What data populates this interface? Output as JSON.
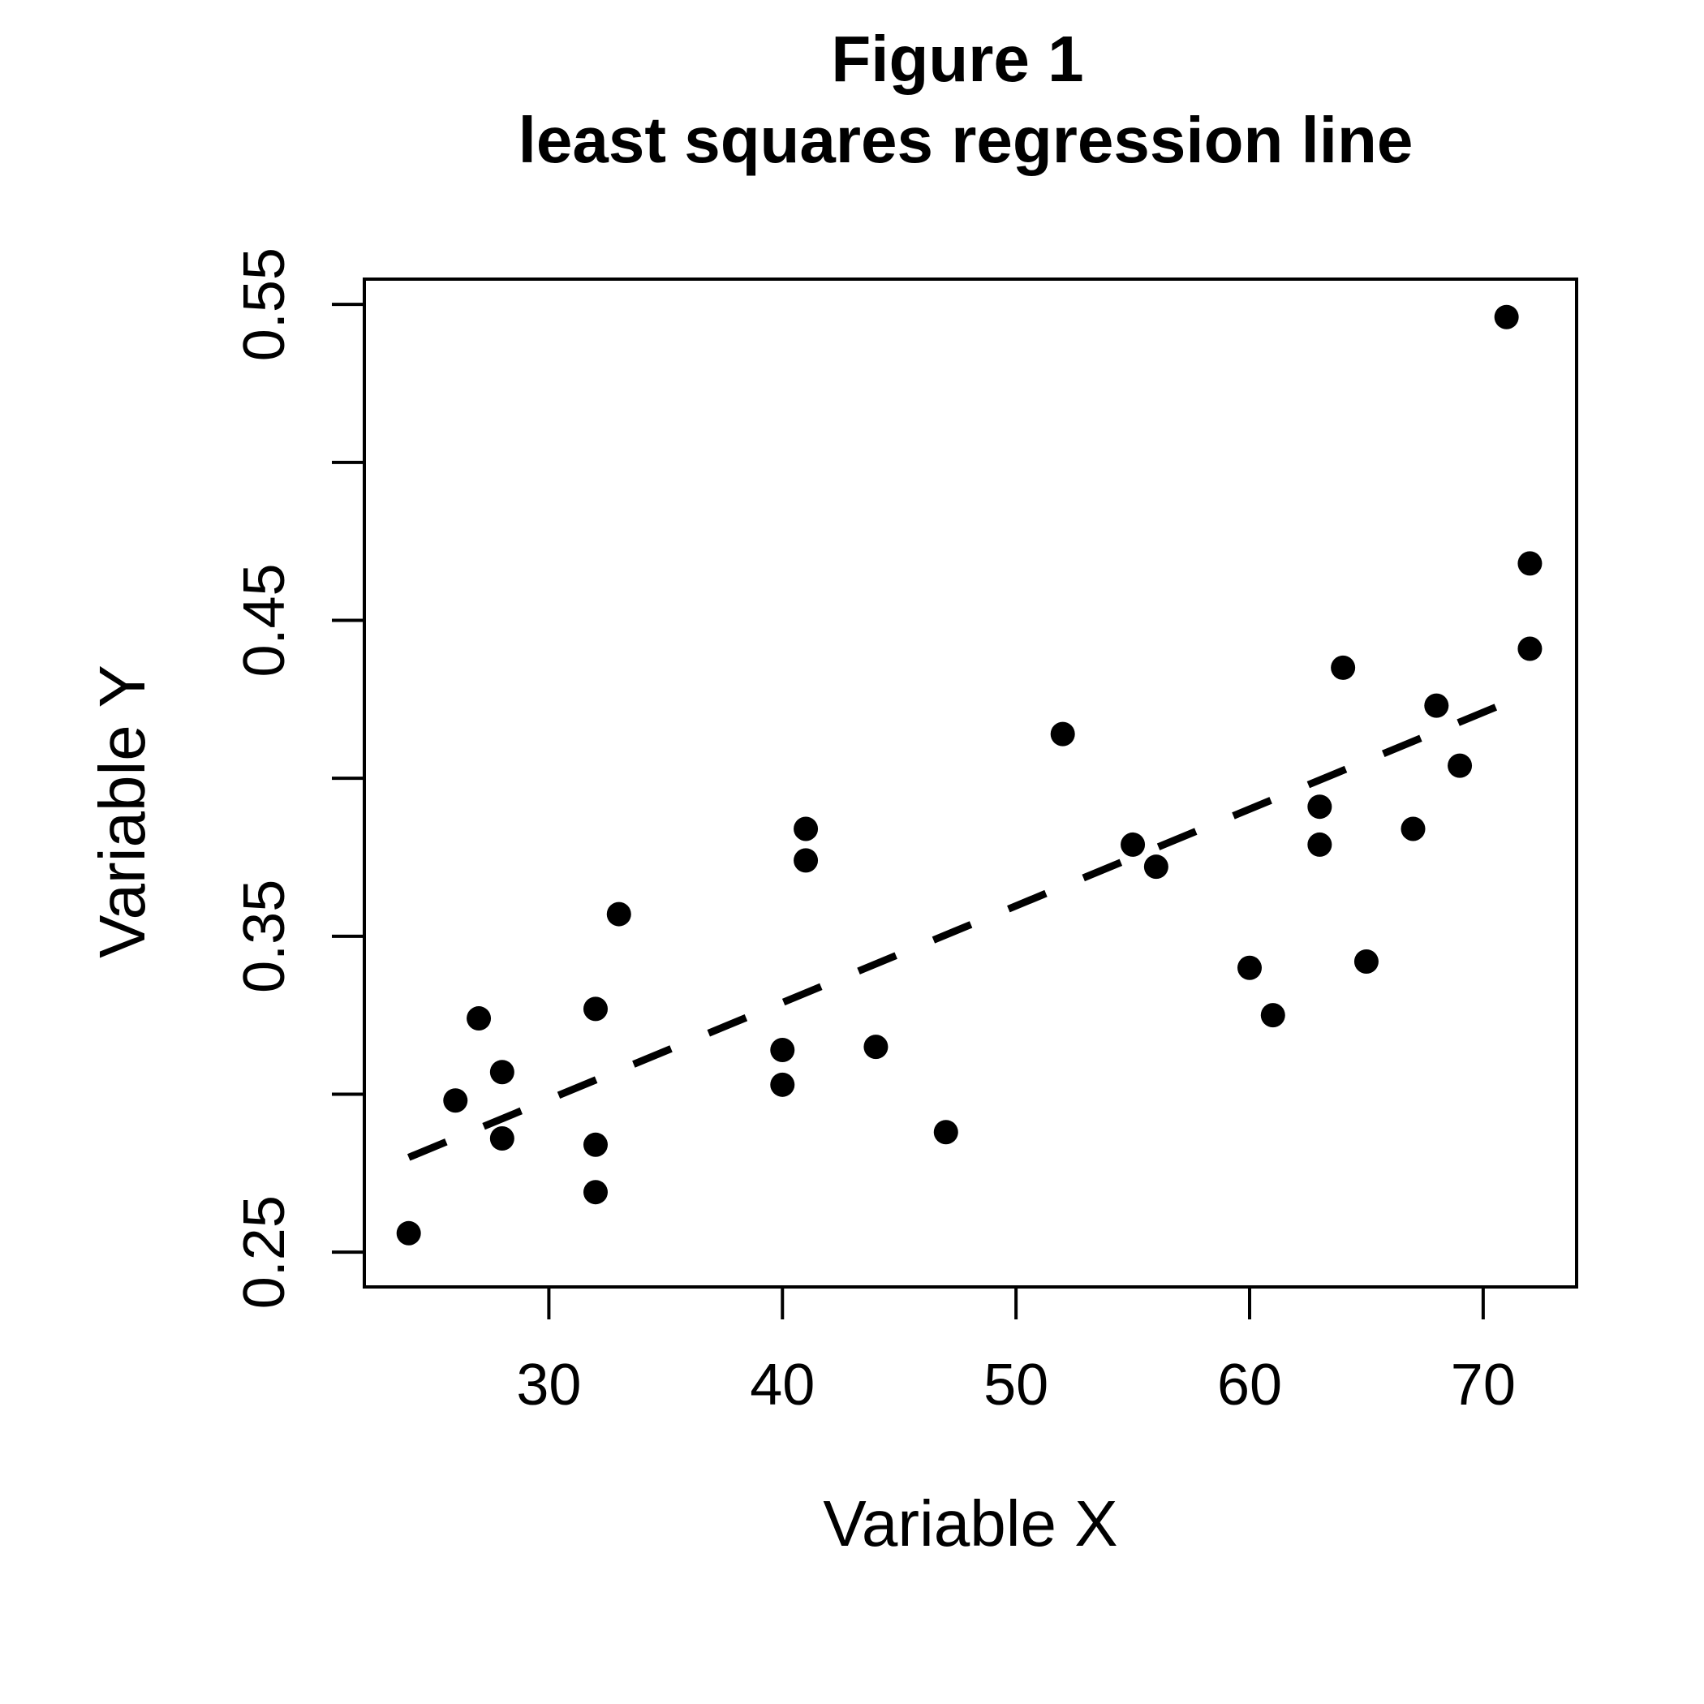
{
  "chart_data": {
    "type": "scatter",
    "title": "Figure 1",
    "subtitle": "least squares regression line",
    "xlabel": "Variable X",
    "ylabel": "Variable Y",
    "xlim": [
      22.1,
      74
    ],
    "ylim": [
      0.239,
      0.558
    ],
    "x_ticks": [
      30,
      40,
      50,
      60,
      70
    ],
    "x_tick_labels": [
      "30",
      "40",
      "50",
      "60",
      "70"
    ],
    "y_ticks": [
      0.25,
      0.3,
      0.35,
      0.4,
      0.45,
      0.5,
      0.55
    ],
    "y_tick_labels": [
      "0.25",
      "",
      "0.35",
      "",
      "0.45",
      "",
      "0.55"
    ],
    "grid": false,
    "points": [
      {
        "x": 24,
        "y": 0.256
      },
      {
        "x": 26,
        "y": 0.298
      },
      {
        "x": 27,
        "y": 0.324
      },
      {
        "x": 28,
        "y": 0.307
      },
      {
        "x": 28,
        "y": 0.286
      },
      {
        "x": 32,
        "y": 0.327
      },
      {
        "x": 32,
        "y": 0.284
      },
      {
        "x": 32,
        "y": 0.269
      },
      {
        "x": 33,
        "y": 0.357
      },
      {
        "x": 40,
        "y": 0.314
      },
      {
        "x": 40,
        "y": 0.303
      },
      {
        "x": 41,
        "y": 0.384
      },
      {
        "x": 41,
        "y": 0.374
      },
      {
        "x": 44,
        "y": 0.315
      },
      {
        "x": 47,
        "y": 0.288
      },
      {
        "x": 52,
        "y": 0.414
      },
      {
        "x": 55,
        "y": 0.379
      },
      {
        "x": 56,
        "y": 0.372
      },
      {
        "x": 60,
        "y": 0.34
      },
      {
        "x": 61,
        "y": 0.325
      },
      {
        "x": 63,
        "y": 0.391
      },
      {
        "x": 63,
        "y": 0.379
      },
      {
        "x": 64,
        "y": 0.435
      },
      {
        "x": 65,
        "y": 0.342
      },
      {
        "x": 67,
        "y": 0.384
      },
      {
        "x": 68,
        "y": 0.423
      },
      {
        "x": 69,
        "y": 0.404
      },
      {
        "x": 71,
        "y": 0.546
      },
      {
        "x": 72,
        "y": 0.468
      },
      {
        "x": 72,
        "y": 0.441
      }
    ],
    "regression_line": {
      "style": "dashed",
      "x": [
        24,
        72
      ],
      "y": [
        0.28,
        0.427
      ]
    }
  }
}
